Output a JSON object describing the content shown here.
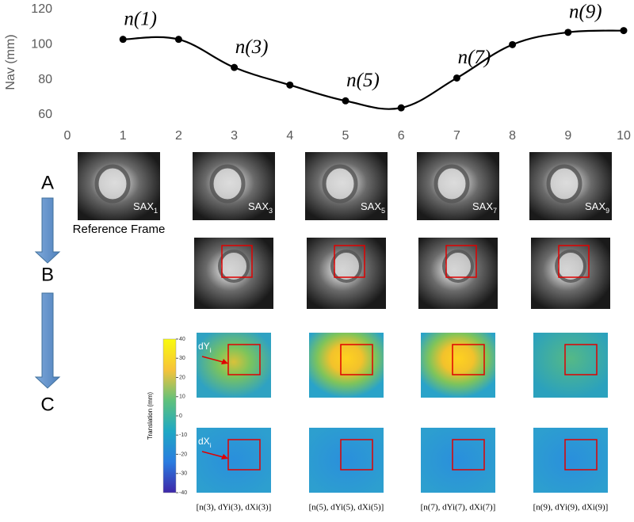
{
  "chart_data": {
    "type": "line",
    "y_label": "Nav (mm)",
    "x": [
      1,
      2,
      3,
      4,
      5,
      6,
      7,
      8,
      9,
      10
    ],
    "values": [
      103,
      103,
      87,
      77,
      68,
      64,
      81,
      100,
      107,
      108
    ],
    "color": "#000000",
    "xlim": [
      0,
      10
    ],
    "xticks": [
      0,
      1,
      2,
      3,
      4,
      5,
      6,
      7,
      8,
      9,
      10
    ],
    "ylim": [
      60,
      120
    ],
    "yticks": [
      60,
      80,
      100,
      120
    ],
    "annotations": [
      "n(1)",
      "n(3)",
      "n(5)",
      "n(7)",
      "n(9)"
    ]
  },
  "steps": [
    "A",
    "B",
    "C"
  ],
  "frames": [
    {
      "label": "SAX",
      "sub": "1"
    },
    {
      "label": "SAX",
      "sub": "3"
    },
    {
      "label": "SAX",
      "sub": "5"
    },
    {
      "label": "SAX",
      "sub": "7"
    },
    {
      "label": "SAX",
      "sub": "9"
    }
  ],
  "reference_label": "Reference Frame",
  "colorbar": {
    "label": "Translation (mm)",
    "ticks": [
      40,
      30,
      20,
      10,
      0,
      -10,
      -20,
      -30,
      -40
    ]
  },
  "map_labels": [
    {
      "label": "dY",
      "sub": "i"
    },
    {
      "label": "dX",
      "sub": "i"
    }
  ],
  "captions": [
    "[n(3), dYi(3), dXi(3)]",
    "[n(5), dYi(5), dXi(5)]",
    "[n(7), dYi(7), dXi(7)]",
    "[n(9), dYi(9), dXi(9)]"
  ]
}
